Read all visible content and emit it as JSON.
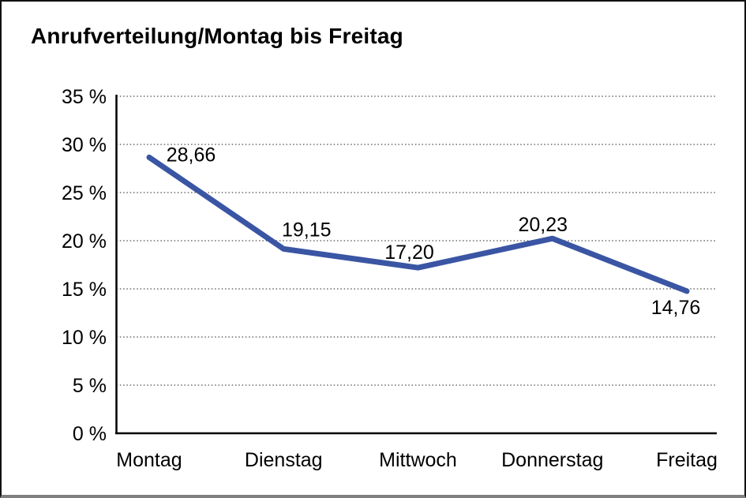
{
  "title": "Anrufverteilung/Montag bis Freitag",
  "colors": {
    "line": "#3A55A3",
    "axis": "#000000",
    "gridline": "#4d4d4d",
    "text": "#000000",
    "background": "#ffffff",
    "frame_border": "#111111"
  },
  "chart_data": {
    "type": "line",
    "title": "Anrufverteilung/Montag bis Freitag",
    "categories": [
      "Montag",
      "Dienstag",
      "Mittwoch",
      "Donnerstag",
      "Freitag"
    ],
    "values": [
      28.66,
      19.15,
      17.2,
      20.23,
      14.76
    ],
    "point_labels": [
      "28,66",
      "19,15",
      "17,20",
      "20,23",
      "14,76"
    ],
    "series_name": "Anrufverteilung",
    "xlabel": "",
    "ylabel": "",
    "ylim": [
      0,
      35
    ],
    "ytick_step": 5,
    "ytick_labels": [
      "0 %",
      "5 %",
      "10 %",
      "15 %",
      "20 %",
      "25 %",
      "30 %",
      "35 %"
    ],
    "grid": "horizontal-dotted",
    "legend_position": "none",
    "line_color": "#3A55A3"
  }
}
